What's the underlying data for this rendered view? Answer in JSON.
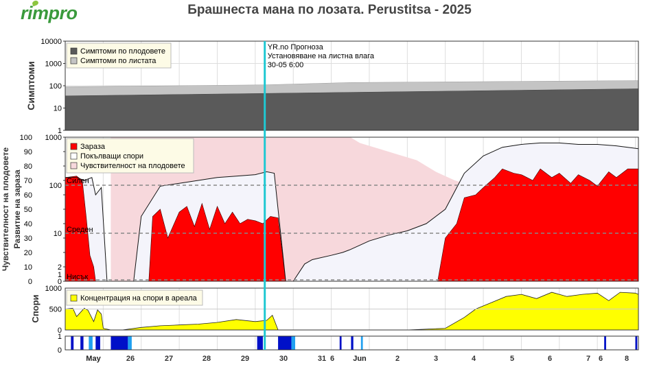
{
  "app": {
    "logo_text": "rimpro",
    "brand_color": "#3a9a3c"
  },
  "title": "Брашнеста мана по лозата.  Perustitsa - 2025",
  "colors": {
    "fruit_symptoms": "#5a5a5a",
    "leaf_symptoms": "#c4c4c4",
    "infection": "#ff0000",
    "sporulation_fill": "#f4f4fb",
    "susceptibility": "#f7d8dc",
    "spore_concentration": "#ffff00",
    "now_line": "#1fc8d2",
    "wetness_dark": "#0010c8",
    "wetness_light": "#20a0f0"
  },
  "forecast_label": {
    "line1": "YR.no Прогноза",
    "line2": "Установяване на листна влага",
    "line3": "30-05 6:00"
  },
  "panel1": {
    "ylabel": "Симптоми",
    "ticks": [
      "10000",
      "1000",
      "100",
      "10",
      "1"
    ],
    "legend": [
      "Симптоми по плодовете",
      "Симптоми по листата"
    ]
  },
  "panel2": {
    "ylabel_left": "Чувствителност на плодовете",
    "ylabel_right": "Развитие на зараза",
    "ticks_left": [
      "100",
      "90",
      "80",
      "70",
      "60",
      "50",
      "40",
      "30",
      "20",
      "10",
      "0"
    ],
    "ticks_right": [
      "1000",
      "100",
      "10",
      "2",
      "1",
      "0"
    ],
    "risk_labels": [
      "Силен",
      "Среден",
      "Нисък"
    ],
    "legend": [
      "Зараза",
      "Покълващи спори",
      "Чувствителност на плодовете"
    ]
  },
  "panel3": {
    "ylabel": "Спори",
    "ticks": [
      "1000",
      "500",
      "0"
    ],
    "legend": [
      "Концентрация на спори в ареала"
    ]
  },
  "panel4": {
    "ticks": [
      "1",
      "0"
    ]
  },
  "x_axis": {
    "labels": [
      "May",
      "26",
      "27",
      "28",
      "29",
      "30",
      "31",
      "6",
      "Jun",
      "2",
      "3",
      "4",
      "5",
      "6",
      "7",
      "6",
      "8"
    ],
    "bold_labels": [
      "May",
      "Jun"
    ]
  },
  "chart_data": {
    "type": "area",
    "title": "Брашнеста мана по лозата.  Perustitsa - 2025",
    "x_unit": "day",
    "x_start": "2025-05-25",
    "x_range": [
      0,
      15.08
    ],
    "forecast_start": 5.25,
    "symptoms": {
      "scale": "log",
      "ylim": [
        1,
        10000
      ],
      "fruit": {
        "x": [
          0,
          15.08
        ],
        "y": [
          35,
          73
        ]
      },
      "leaves": {
        "x": [
          0,
          5.25,
          7.5,
          15.08
        ],
        "y": [
          90,
          110,
          140,
          170
        ]
      }
    },
    "susceptibility_pct": {
      "ylim": [
        0,
        100
      ],
      "x": [
        1.2,
        7.5,
        7.75,
        8.0,
        8.25,
        8.5,
        8.75,
        9.0,
        9.25,
        9.5,
        9.75,
        10.0,
        10.25,
        10.5,
        10.75,
        11.0
      ],
      "y": [
        100,
        100,
        96,
        94,
        92,
        90,
        88,
        86,
        84,
        80,
        76,
        73,
        70,
        68,
        66,
        0
      ]
    },
    "sporulation": {
      "scale": "index",
      "ylim": [
        0,
        100
      ],
      "x": [
        0,
        0.3,
        0.5,
        0.7,
        0.8,
        0.95,
        1.1,
        1.3,
        1.5,
        1.8,
        2.0,
        2.5,
        3.0,
        3.5,
        4.0,
        4.5,
        5.0,
        5.3,
        5.5,
        5.8,
        6.0,
        6.3,
        6.5,
        7.0,
        7.3,
        7.5,
        8.0,
        8.5,
        9.0,
        9.5,
        10.0,
        10.5,
        11.0,
        11.5,
        12.0,
        12.5,
        13.0,
        13.5,
        14.0,
        14.5,
        15.08
      ],
      "y": [
        72,
        72,
        70,
        72,
        60,
        65,
        0,
        0,
        0,
        0,
        45,
        66,
        68,
        70,
        72,
        73,
        74,
        76,
        75,
        0,
        0,
        12,
        15,
        18,
        20,
        22,
        28,
        32,
        35,
        40,
        50,
        75,
        87,
        93,
        95,
        96,
        96,
        95,
        95,
        94,
        92
      ]
    },
    "infection": {
      "scale": "index",
      "ylim": [
        0,
        100
      ],
      "x": [
        0,
        0.3,
        0.45,
        0.55,
        0.65,
        0.75,
        0.8,
        1.1,
        1.5,
        2.2,
        2.3,
        2.5,
        2.7,
        3.0,
        3.2,
        3.4,
        3.6,
        3.8,
        4.0,
        4.2,
        4.4,
        4.6,
        4.8,
        5.0,
        5.2,
        5.4,
        5.6,
        5.8,
        9.8,
        10.0,
        10.3,
        10.5,
        10.8,
        11.0,
        11.3,
        11.5,
        11.8,
        12.0,
        12.3,
        12.5,
        12.8,
        13.0,
        13.3,
        13.5,
        13.8,
        14.0,
        14.3,
        14.5,
        14.8,
        15.08
      ],
      "y": [
        72,
        73,
        70,
        45,
        18,
        10,
        0,
        0,
        0,
        0,
        45,
        50,
        30,
        48,
        52,
        38,
        54,
        36,
        52,
        40,
        48,
        40,
        43,
        42,
        40,
        45,
        44,
        0,
        0,
        30,
        40,
        58,
        60,
        65,
        72,
        78,
        75,
        74,
        70,
        78,
        72,
        75,
        68,
        74,
        70,
        66,
        76,
        72,
        78,
        78
      ]
    },
    "spore_concentration": {
      "ylim": [
        0,
        1000
      ],
      "x": [
        0,
        0.2,
        0.3,
        0.5,
        0.6,
        0.75,
        0.85,
        0.95,
        1.0,
        1.2,
        1.5,
        2.0,
        2.5,
        3.0,
        3.5,
        4.0,
        4.5,
        5.0,
        5.3,
        5.45,
        5.6,
        9.0,
        10.0,
        10.5,
        10.8,
        11.2,
        11.6,
        12.0,
        12.4,
        12.8,
        13.2,
        13.6,
        14.0,
        14.3,
        14.6,
        15.0,
        15.08
      ],
      "y": [
        500,
        520,
        320,
        520,
        470,
        200,
        480,
        380,
        40,
        0,
        0,
        60,
        100,
        120,
        140,
        180,
        250,
        200,
        230,
        350,
        0,
        0,
        40,
        300,
        500,
        650,
        800,
        850,
        750,
        900,
        800,
        850,
        880,
        700,
        900,
        880,
        850
      ]
    },
    "leaf_wetness": {
      "ylim": [
        0,
        1
      ],
      "periods": [
        [
          0.15,
          0.22
        ],
        [
          0.4,
          0.48
        ],
        [
          0.62,
          0.72
        ],
        [
          0.8,
          0.92
        ],
        [
          1.2,
          1.65
        ],
        [
          1.65,
          1.75
        ],
        [
          5.05,
          5.2
        ],
        [
          5.6,
          5.95
        ],
        [
          5.95,
          6.05
        ],
        [
          7.22,
          7.27
        ],
        [
          7.52,
          7.58
        ],
        [
          7.78,
          7.83
        ],
        [
          14.18,
          14.23
        ],
        [
          15.0,
          15.05
        ]
      ]
    }
  }
}
